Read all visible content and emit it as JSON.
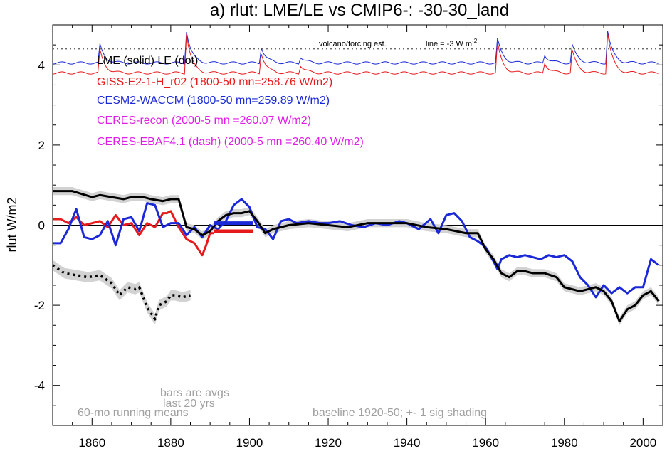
{
  "chart_data": {
    "type": "line",
    "title": "a) rlut: LME/LE vs CMIP6-: -30-30_land",
    "ylabel": "rlut W/m2",
    "xlim": [
      1850,
      2005
    ],
    "ylim": [
      -5,
      5
    ],
    "x_ticks": [
      1860,
      1880,
      1900,
      1920,
      1940,
      1960,
      1980,
      2000
    ],
    "y_ticks": [
      -4,
      -2,
      0,
      2,
      4
    ],
    "colors": {
      "black": "#000000",
      "red": "#e8191b",
      "blue": "#1a28d8",
      "magenta": "#e01ee8",
      "gray": "#a0a0a0",
      "shading": "#d2d2d2"
    },
    "legend": [
      {
        "text": "LME (solid)   LE (dot)",
        "color": "#000000"
      },
      {
        "text": "GISS-E2-1-H_r02 (1800-50 mn=258.76 W/m2)",
        "color": "#e8191b"
      },
      {
        "text": "CESM2-WACCM (1800-50 mn=259.89 W/m2)",
        "color": "#1a28d8"
      },
      {
        "text": "CERES-recon (2000-5 mn =260.07 W/m2)",
        "color": "#e01ee8"
      },
      {
        "text": "CERES-EBAF4.1 (dash) (2000-5 mn =260.40 W/m2)",
        "color": "#e01ee8"
      }
    ],
    "annotations": {
      "volcano": "volcano/forcing est.",
      "line_label": "line = -3 W m",
      "line_label_sup": "-2",
      "running_means": "60-mo running means",
      "bars_1": "bars are avgs",
      "bars_2": "last 20 yrs",
      "baseline": "baseline 1920-50; +- 1 sig shading"
    },
    "reference_line": 4.4,
    "series": [
      {
        "name": "LME (solid)",
        "color": "#000000",
        "x": [
          1850,
          1855,
          1860,
          1862,
          1865,
          1868,
          1870,
          1873,
          1875,
          1878,
          1880,
          1882,
          1884,
          1886,
          1888,
          1890,
          1892,
          1894,
          1896,
          1898,
          1900,
          1902,
          1904,
          1906,
          1910,
          1915,
          1920,
          1925,
          1930,
          1935,
          1940,
          1945,
          1950,
          1955,
          1958,
          1960,
          1962,
          1964,
          1966,
          1968,
          1970,
          1972,
          1975,
          1978,
          1980,
          1982,
          1984,
          1986,
          1988,
          1990,
          1992,
          1994,
          1996,
          1998,
          2000,
          2002,
          2004
        ],
        "y": [
          0.85,
          0.85,
          0.7,
          0.75,
          0.7,
          0.65,
          0.7,
          0.7,
          0.65,
          0.6,
          0.65,
          0.65,
          -0.05,
          -0.1,
          -0.25,
          -0.15,
          0.1,
          0.25,
          0.3,
          0.3,
          0.35,
          0.1,
          -0.2,
          -0.1,
          0.0,
          0.05,
          0.0,
          -0.05,
          0.05,
          0.05,
          0.05,
          -0.05,
          -0.1,
          -0.2,
          -0.2,
          -0.6,
          -0.85,
          -1.2,
          -1.3,
          -1.15,
          -1.15,
          -1.2,
          -1.2,
          -1.3,
          -1.55,
          -1.6,
          -1.65,
          -1.6,
          -1.55,
          -1.65,
          -1.9,
          -2.4,
          -2.1,
          -2.0,
          -1.75,
          -1.65,
          -1.9
        ]
      },
      {
        "name": "LE (dot)",
        "color": "#000000",
        "dotted": true,
        "x": [
          1850,
          1853,
          1856,
          1859,
          1862,
          1865,
          1867,
          1869,
          1871,
          1872,
          1874,
          1876,
          1877,
          1879,
          1880,
          1881,
          1883,
          1885
        ],
        "y": [
          -1.0,
          -1.2,
          -1.25,
          -1.3,
          -1.25,
          -1.45,
          -1.75,
          -1.55,
          -1.6,
          -1.55,
          -2.05,
          -2.35,
          -2.0,
          -1.9,
          -1.75,
          -1.75,
          -1.8,
          -1.75
        ]
      },
      {
        "name": "GISS-E2-1-H_r02",
        "color": "#e8191b",
        "x": [
          1850,
          1852,
          1854,
          1856,
          1858,
          1860,
          1862,
          1864,
          1866,
          1868,
          1870,
          1872,
          1874,
          1876,
          1878,
          1879,
          1880,
          1882,
          1884,
          1886,
          1888,
          1889,
          1890,
          1891
        ],
        "y": [
          0.15,
          0.15,
          0.05,
          0.2,
          0.0,
          0.05,
          0.1,
          -0.05,
          0.25,
          0.0,
          0.05,
          -0.25,
          0.05,
          -0.05,
          0.3,
          0.3,
          0.35,
          -0.05,
          -0.35,
          -0.45,
          -0.75,
          -0.5,
          -0.2,
          -0.2
        ]
      },
      {
        "name": "CESM2-WACCM",
        "color": "#1a28d8",
        "x": [
          1850,
          1852,
          1854,
          1856,
          1858,
          1860,
          1862,
          1864,
          1866,
          1868,
          1870,
          1872,
          1874,
          1876,
          1878,
          1880,
          1882,
          1884,
          1886,
          1888,
          1890,
          1892,
          1894,
          1896,
          1898,
          1900,
          1902,
          1904,
          1906,
          1908,
          1910,
          1912,
          1915,
          1918,
          1920,
          1923,
          1926,
          1929,
          1932,
          1935,
          1938,
          1940,
          1943,
          1946,
          1948,
          1950,
          1952,
          1954,
          1956,
          1958,
          1960,
          1962,
          1963,
          1964,
          1966,
          1968,
          1970,
          1972,
          1974,
          1976,
          1978,
          1980,
          1982,
          1984,
          1986,
          1988,
          1990,
          1992,
          1994,
          1996,
          1998,
          2000,
          2002,
          2004
        ],
        "y": [
          -0.45,
          -0.45,
          -0.1,
          0.4,
          -0.3,
          -0.35,
          -0.25,
          0.1,
          -0.5,
          0.15,
          0.2,
          -0.15,
          0.55,
          0.5,
          -0.05,
          0.05,
          0.05,
          -0.25,
          -0.05,
          -0.3,
          0.0,
          -0.1,
          0.1,
          0.5,
          0.65,
          0.45,
          -0.05,
          -0.1,
          -0.35,
          0.1,
          0.15,
          0.05,
          0.1,
          0.05,
          0.05,
          0.1,
          0.0,
          -0.05,
          0.05,
          0.0,
          0.1,
          0.05,
          -0.1,
          0.15,
          -0.2,
          0.25,
          0.3,
          0.1,
          -0.3,
          -0.4,
          -0.55,
          -0.9,
          -1.1,
          -0.85,
          -0.75,
          -0.8,
          -0.75,
          -0.8,
          -0.85,
          -0.75,
          -0.8,
          -0.75,
          -0.9,
          -1.3,
          -1.5,
          -1.8,
          -1.5,
          -1.7,
          -1.55,
          -1.7,
          -1.55,
          -1.55,
          -0.85,
          -1.0
        ]
      }
    ],
    "bars": [
      {
        "name": "CESM2-WACCM",
        "color": "#1a28d8",
        "x": [
          1891,
          1901
        ],
        "y": 0.05
      },
      {
        "name": "GISS-E2-1-H_r02",
        "color": "#e8191b",
        "x": [
          1891,
          1901
        ],
        "y": -0.15
      }
    ]
  }
}
